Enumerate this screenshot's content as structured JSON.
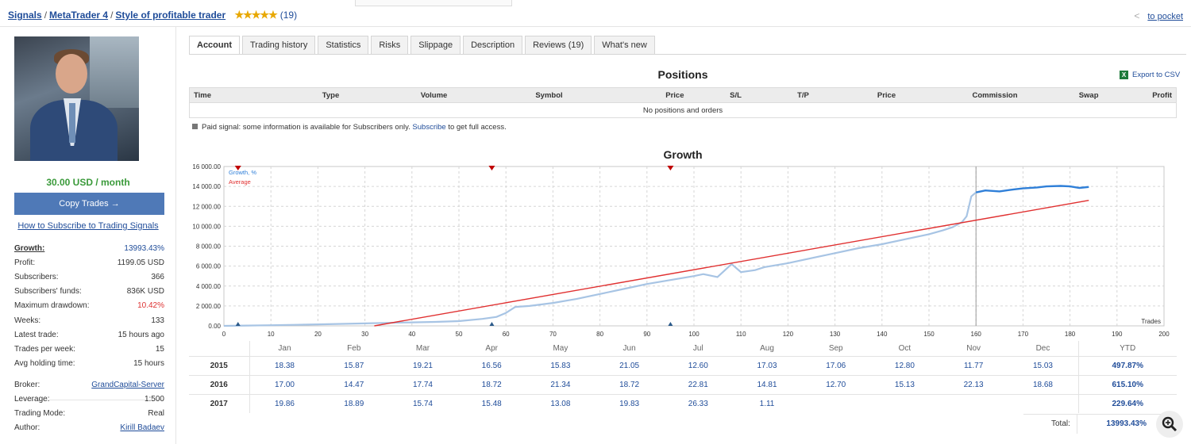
{
  "breadcrumb": {
    "signals": "Signals",
    "platform": "MetaTrader 4",
    "name": "Style of profitable trader",
    "stars": "★★★★★",
    "reviews": "(19)"
  },
  "pocket": {
    "label": "to pocket"
  },
  "profile": {
    "price": "30.00 USD / month",
    "copy_button": "Copy Trades →",
    "howto": "How to Subscribe to Trading Signals"
  },
  "stats": [
    {
      "k": "Growth:",
      "v": "13993.43%"
    },
    {
      "k": "Profit:",
      "v": "1199.05 USD"
    },
    {
      "k": "Subscribers:",
      "v": "366"
    },
    {
      "k": "Subscribers' funds:",
      "v": "836K USD"
    },
    {
      "k": "Maximum drawdown:",
      "v": "10.42%"
    },
    {
      "k": "Weeks:",
      "v": "133"
    },
    {
      "k": "Latest trade:",
      "v": "15 hours ago"
    },
    {
      "k": "Trades per week:",
      "v": "15"
    },
    {
      "k": "Avg holding time:",
      "v": "15 hours"
    }
  ],
  "stats2": [
    {
      "k": "Broker:",
      "v": "GrandCapital-Server"
    },
    {
      "k": "Leverage:",
      "v": "1:500"
    },
    {
      "k": "Trading Mode:",
      "v": "Real"
    },
    {
      "k": "Author:",
      "v": "Kirill Badaev"
    }
  ],
  "tabs": [
    "Account",
    "Trading history",
    "Statistics",
    "Risks",
    "Slippage",
    "Description",
    "Reviews (19)",
    "What's new"
  ],
  "positions": {
    "title": "Positions",
    "export": "Export to CSV",
    "columns": [
      "Time",
      "Type",
      "Volume",
      "Symbol",
      "Price",
      "S/L",
      "T/P",
      "Price",
      "Commission",
      "Swap",
      "Profit"
    ],
    "empty": "No positions and orders"
  },
  "paid_note": {
    "before": "Paid signal: some information is available for Subscribers only.",
    "link": "Subscribe",
    "after": "to get full access."
  },
  "chart_data": {
    "type": "line",
    "title": "Growth",
    "xlabel": "Trades",
    "ylabel": "",
    "xlim": [
      0,
      200
    ],
    "ylim": [
      0,
      16000
    ],
    "xticks": [
      0,
      10,
      20,
      30,
      40,
      50,
      60,
      70,
      80,
      90,
      100,
      110,
      120,
      130,
      140,
      150,
      160,
      170,
      180,
      190,
      200
    ],
    "yticks": [
      "0.00",
      "2 000.00",
      "4 000.00",
      "6 000.00",
      "8 000.00",
      "10 000.00",
      "12 000.00",
      "14 000.00",
      "16 000.00"
    ],
    "grid": true,
    "legend": "top-left",
    "colors": {
      "growth_light": "#a7c4e4",
      "growth_dark": "#2f7fd8",
      "average": "#e03030",
      "marker": "#c00000",
      "marker_low": "#2b5a8a"
    },
    "series": [
      {
        "name": "Growth, %",
        "x": [
          0,
          5,
          10,
          15,
          20,
          25,
          30,
          35,
          40,
          45,
          50,
          55,
          58,
          60,
          62,
          65,
          70,
          75,
          80,
          85,
          90,
          95,
          100,
          102,
          105,
          108,
          110,
          113,
          115,
          120,
          125,
          130,
          135,
          140,
          145,
          150,
          153,
          155,
          157,
          158,
          159,
          160,
          162,
          165,
          168,
          170,
          173,
          175,
          178,
          180,
          182,
          184
        ],
        "y": [
          0,
          30,
          60,
          100,
          150,
          200,
          250,
          300,
          350,
          400,
          480,
          700,
          900,
          1300,
          1900,
          2000,
          2300,
          2700,
          3200,
          3700,
          4200,
          4600,
          5000,
          5200,
          4900,
          6200,
          5400,
          5600,
          5900,
          6300,
          6800,
          7300,
          7800,
          8200,
          8700,
          9200,
          9600,
          9900,
          10400,
          11000,
          13000,
          13400,
          13600,
          13500,
          13700,
          13800,
          13900,
          14000,
          14050,
          14000,
          13850,
          13950
        ]
      },
      {
        "name": "Average",
        "x": [
          32,
          184
        ],
        "y": [
          0,
          12600
        ]
      }
    ],
    "markers_top": [
      3,
      57,
      95
    ],
    "markers_bottom": [
      3,
      57,
      95
    ],
    "highlight_x": 160
  },
  "monthly": {
    "months": [
      "Jan",
      "Feb",
      "Mar",
      "Apr",
      "May",
      "Jun",
      "Jul",
      "Aug",
      "Sep",
      "Oct",
      "Nov",
      "Dec"
    ],
    "ytd_label": "YTD",
    "rows": [
      {
        "year": "2015",
        "values": [
          "18.38",
          "15.87",
          "19.21",
          "16.56",
          "15.83",
          "21.05",
          "12.60",
          "17.03",
          "17.06",
          "12.80",
          "11.77",
          "15.03"
        ],
        "ytd": "497.87%"
      },
      {
        "year": "2016",
        "values": [
          "17.00",
          "14.47",
          "17.74",
          "18.72",
          "21.34",
          "18.72",
          "22.81",
          "14.81",
          "12.70",
          "15.13",
          "22.13",
          "18.68"
        ],
        "ytd": "615.10%"
      },
      {
        "year": "2017",
        "values": [
          "19.86",
          "18.89",
          "15.74",
          "15.48",
          "13.08",
          "19.83",
          "26.33",
          "1.11",
          "",
          "",
          "",
          ""
        ],
        "ytd": "229.64%"
      }
    ],
    "total_label": "Total:",
    "total_value": "13993.43%"
  }
}
